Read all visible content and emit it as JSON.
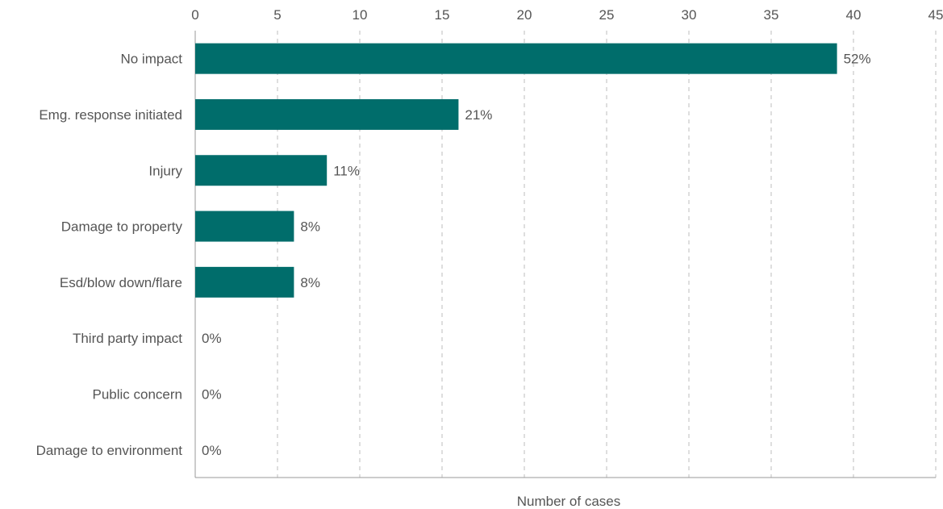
{
  "chart_data": {
    "type": "bar",
    "orientation": "horizontal",
    "categories": [
      "No impact",
      "Emg. response initiated",
      "Injury",
      "Damage to property",
      "Esd/blow down/flare",
      "Third party impact",
      "Public concern",
      "Damage to environment"
    ],
    "values": [
      39,
      16,
      8,
      6,
      6,
      0,
      0,
      0
    ],
    "data_labels": [
      "52%",
      "21%",
      "11%",
      "8%",
      "8%",
      "0%",
      "0%",
      "0%"
    ],
    "xlabel": "Number of cases",
    "ylabel": "",
    "xlim": [
      0,
      45
    ],
    "xticks": [
      "0",
      "5",
      "10",
      "15",
      "20",
      "25",
      "30",
      "35",
      "40",
      "45"
    ],
    "x_axis_position": "top",
    "grid": true,
    "legend": "none",
    "colors": {
      "bar": "#006d6b"
    }
  }
}
